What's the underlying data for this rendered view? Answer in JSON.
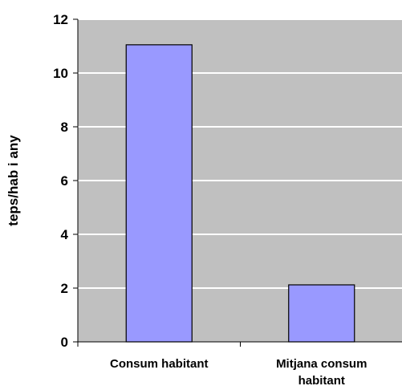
{
  "chart_data": {
    "type": "bar",
    "title": "",
    "xlabel": "",
    "ylabel": "teps/hab i any",
    "categories": [
      [
        "Consum habitant"
      ],
      [
        "Mitjana consum",
        "habitant"
      ]
    ],
    "values": [
      11.05,
      2.12
    ],
    "ylim": [
      0,
      12
    ],
    "yticks": [
      "0",
      "2",
      "4",
      "6",
      "8",
      "10",
      "12"
    ],
    "grid": true,
    "legend": "none",
    "colors": {
      "plot_background": "#c0c0c0",
      "bar_fill": "#9999ff",
      "bar_stroke": "#000000",
      "gridline": "#ffffff",
      "axis": "#000000"
    }
  }
}
